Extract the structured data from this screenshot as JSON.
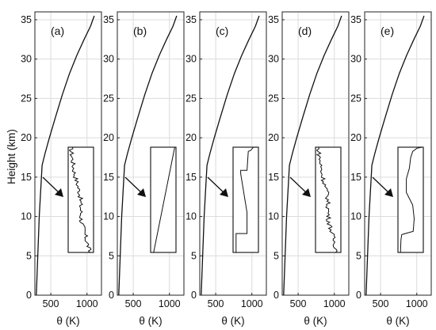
{
  "chart_data": {
    "type": "line",
    "ylabel": "Height (km)",
    "xlabel": "θ (K)",
    "x_ticks": [
      500,
      1000
    ],
    "y_ticks": [
      0,
      5,
      10,
      15,
      20,
      25,
      30,
      35
    ],
    "xlim": [
      280,
      1200
    ],
    "ylim": [
      0,
      36
    ],
    "grid": true,
    "colors": {
      "line": "#111111",
      "grid": "#dcdcdc",
      "axes": "#222222",
      "arrow": "#111111"
    },
    "panels": [
      {
        "label": "(a)",
        "inset": "noisy"
      },
      {
        "label": "(b)",
        "inset": "straight"
      },
      {
        "label": "(c)",
        "inset": "stepped"
      },
      {
        "label": "(d)",
        "inset": "noisy"
      },
      {
        "label": "(e)",
        "inset": "smooth"
      }
    ],
    "profile": {
      "x": [
        300,
        340,
        380,
        420,
        480,
        560,
        660,
        760,
        860,
        960,
        1050,
        1100
      ],
      "y": [
        0,
        10,
        16.5,
        18,
        20,
        22.5,
        25.5,
        28.2,
        30.5,
        32.5,
        34.2,
        35.5
      ]
    }
  }
}
